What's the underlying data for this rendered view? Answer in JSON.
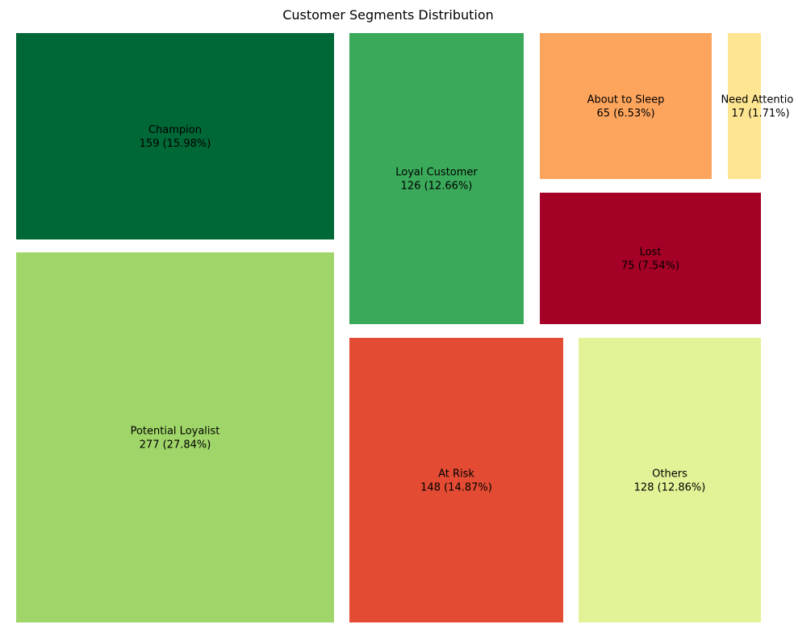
{
  "chart_data": {
    "type": "treemap",
    "title": "Customer Segments Distribution",
    "segments": [
      {
        "name": "Champion",
        "value": 159,
        "percent": "15.98%",
        "label": "159 (15.98%)",
        "color": "#006837"
      },
      {
        "name": "Potential Loyalist",
        "value": 277,
        "percent": "27.84%",
        "label": "277 (27.84%)",
        "color": "#a0d669"
      },
      {
        "name": "Loyal Customer",
        "value": 126,
        "percent": "12.66%",
        "label": "126 (12.66%)",
        "color": "#3aa95a"
      },
      {
        "name": "At Risk",
        "value": 148,
        "percent": "14.87%",
        "label": "148 (14.87%)",
        "color": "#e34b33"
      },
      {
        "name": "About to Sleep",
        "value": 65,
        "percent": "6.53%",
        "label": "65 (6.53%)",
        "color": "#fda55d"
      },
      {
        "name": "Need Attention",
        "value": 17,
        "percent": "1.71%",
        "label": "17 (1.71%)",
        "color": "#fee591"
      },
      {
        "name": "Lost",
        "value": 75,
        "percent": "7.54%",
        "label": "75 (7.54%)",
        "color": "#a50026"
      },
      {
        "name": "Others",
        "value": 128,
        "percent": "12.86%",
        "label": "128 (12.86%)",
        "color": "#e2f296"
      }
    ]
  }
}
